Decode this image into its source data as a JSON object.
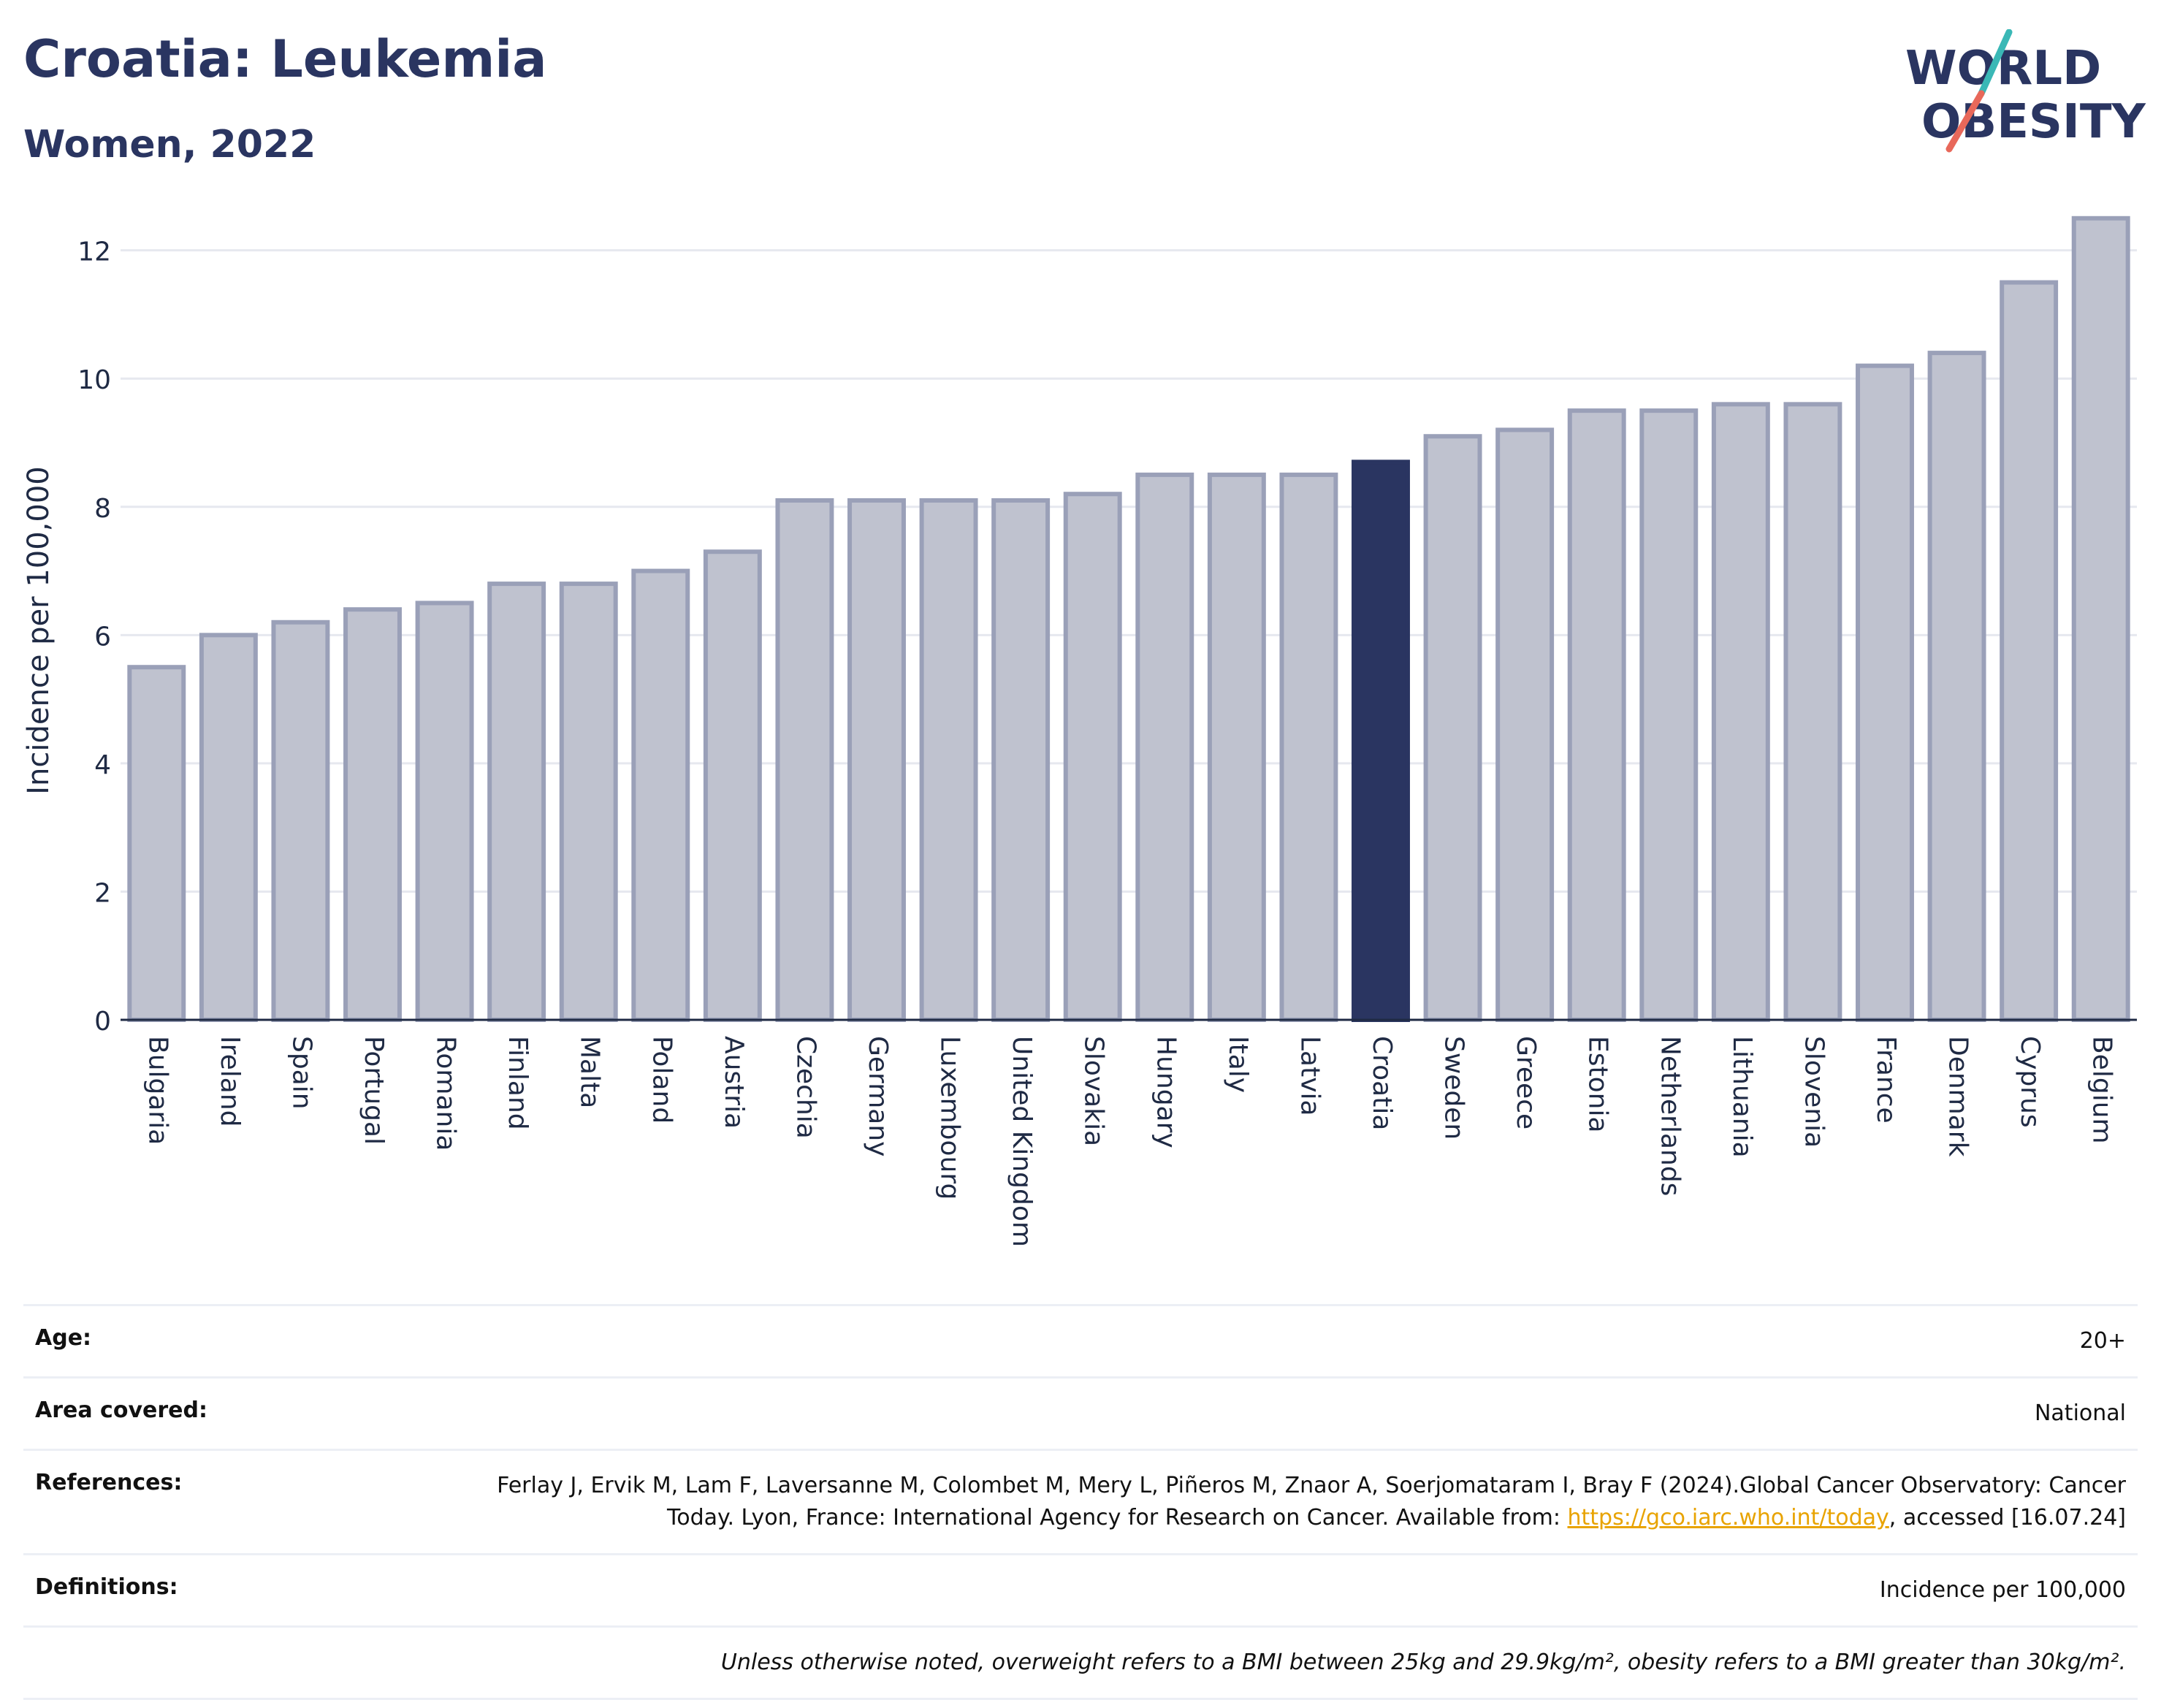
{
  "header": {
    "title": "Croatia: Leukemia",
    "subtitle": "Women, 2022"
  },
  "logo": {
    "line1": "WORLD",
    "line2": "OBESITY",
    "slash_colors": [
      "#3ab8b6",
      "#e8685a"
    ]
  },
  "colors": {
    "bar": "#bfc2cf",
    "bar_border": "#9aa0b8",
    "highlight": "#2a3561",
    "grid": "#e6e8ef",
    "axis": "#1f2a44"
  },
  "chart_data": {
    "type": "bar",
    "title": "",
    "xlabel": "",
    "ylabel": "Incidence per 100,000",
    "ylim": [
      0,
      12.6
    ],
    "yticks": [
      0,
      2,
      4,
      6,
      8,
      10,
      12
    ],
    "grid": true,
    "highlight_category": "Croatia",
    "categories": [
      "Bulgaria",
      "Ireland",
      "Spain",
      "Portugal",
      "Romania",
      "Finland",
      "Malta",
      "Poland",
      "Austria",
      "Czechia",
      "Germany",
      "Luxembourg",
      "United Kingdom",
      "Slovakia",
      "Hungary",
      "Italy",
      "Latvia",
      "Croatia",
      "Sweden",
      "Greece",
      "Estonia",
      "Netherlands",
      "Lithuania",
      "Slovenia",
      "France",
      "Denmark",
      "Cyprus",
      "Belgium"
    ],
    "values": [
      5.5,
      6.0,
      6.2,
      6.4,
      6.5,
      6.8,
      6.8,
      7.0,
      7.3,
      8.1,
      8.1,
      8.1,
      8.1,
      8.2,
      8.5,
      8.5,
      8.5,
      8.7,
      9.1,
      9.2,
      9.5,
      9.5,
      9.6,
      9.6,
      10.2,
      10.4,
      11.5,
      12.5
    ]
  },
  "info": {
    "age_label": "Age:",
    "age_value": "20+",
    "area_label": "Area covered:",
    "area_value": "National",
    "references_label": "References:",
    "references_text_1": "Ferlay J, Ervik M, Lam F, Laversanne M, Colombet M, Mery L, Piñeros M, Znaor A, Soerjomataram I, Bray F (2024).Global Cancer Observatory: Cancer Today. Lyon, France: International Agency for Research on Cancer. Available from: ",
    "references_link": "https://gco.iarc.who.int/today",
    "references_text_2": ", accessed [16.07.24]",
    "definitions_label": "Definitions:",
    "definitions_value": "Incidence per 100,000",
    "note": "Unless otherwise noted, overweight refers to a BMI between 25kg and 29.9kg/m², obesity refers to a BMI greater than 30kg/m²."
  }
}
